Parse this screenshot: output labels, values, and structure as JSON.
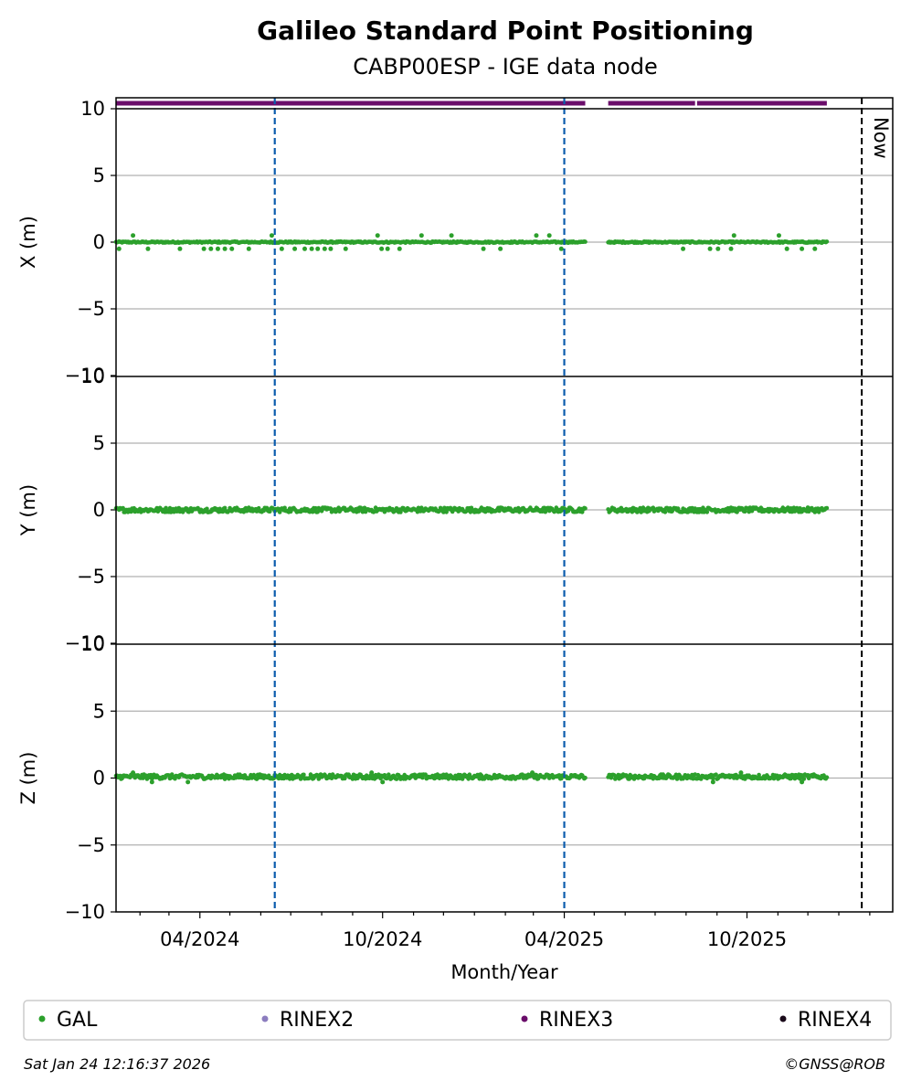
{
  "chart_data": {
    "type": "scatter",
    "title": "Galileo Standard Point Positioning",
    "subtitle": "CABP00ESP - IGE data node",
    "xlabel": "Month/Year",
    "x_tick_labels": [
      "04/2024",
      "10/2024",
      "04/2025",
      "10/2025"
    ],
    "x_ticks": [
      "2024-04-01",
      "2024-10-01",
      "2025-04-01",
      "2025-10-01"
    ],
    "xlim": [
      "2024-01-08",
      "2026-02-24"
    ],
    "now_label": "Now",
    "now_date": "2026-01-24",
    "reference_lines": [
      "2024-06-15",
      "2025-04-01"
    ],
    "grid": "horizontal",
    "subplots": [
      {
        "ylabel": "X (m)",
        "ylim": [
          -10,
          10
        ],
        "yticks": [
          -10,
          -5,
          0,
          5,
          10
        ],
        "series": "GAL",
        "baseline": 0.0,
        "outliers": [
          [
            "2024-01-11",
            -0.5
          ],
          [
            "2024-01-25",
            0.5
          ],
          [
            "2024-02-09",
            -0.5
          ],
          [
            "2024-03-12",
            -0.5
          ],
          [
            "2024-04-05",
            -0.5
          ],
          [
            "2024-04-12",
            -0.5
          ],
          [
            "2024-04-19",
            -0.5
          ],
          [
            "2024-04-26",
            -0.5
          ],
          [
            "2024-05-03",
            -0.5
          ],
          [
            "2024-05-20",
            -0.5
          ],
          [
            "2024-06-12",
            0.5
          ],
          [
            "2024-06-22",
            -0.5
          ],
          [
            "2024-07-05",
            -0.5
          ],
          [
            "2024-07-15",
            -0.5
          ],
          [
            "2024-07-22",
            -0.5
          ],
          [
            "2024-07-28",
            -0.5
          ],
          [
            "2024-08-04",
            -0.5
          ],
          [
            "2024-08-10",
            -0.5
          ],
          [
            "2024-08-25",
            -0.5
          ],
          [
            "2024-09-26",
            0.5
          ],
          [
            "2024-09-30",
            -0.5
          ],
          [
            "2024-10-06",
            -0.5
          ],
          [
            "2024-10-18",
            -0.5
          ],
          [
            "2024-11-09",
            0.5
          ],
          [
            "2024-12-09",
            0.5
          ],
          [
            "2025-01-10",
            -0.5
          ],
          [
            "2025-01-27",
            -0.5
          ],
          [
            "2025-03-04",
            0.5
          ],
          [
            "2025-03-17",
            0.5
          ],
          [
            "2025-03-29",
            -0.5
          ],
          [
            "2025-07-29",
            -0.5
          ],
          [
            "2025-08-25",
            -0.5
          ],
          [
            "2025-09-02",
            -0.5
          ],
          [
            "2025-09-15",
            -0.5
          ],
          [
            "2025-09-18",
            0.5
          ],
          [
            "2025-11-02",
            0.5
          ],
          [
            "2025-11-10",
            -0.5
          ],
          [
            "2025-11-25",
            -0.5
          ],
          [
            "2025-12-08",
            -0.5
          ]
        ]
      },
      {
        "ylabel": "Y (m)",
        "ylim": [
          -10,
          10
        ],
        "yticks": [
          -10,
          -5,
          0,
          5,
          10
        ],
        "series": "GAL",
        "baseline": 0.0,
        "outliers": []
      },
      {
        "ylabel": "Z (m)",
        "ylim": [
          -10,
          10
        ],
        "yticks": [
          -10,
          -5,
          0,
          5,
          10
        ],
        "series": "GAL",
        "baseline": 0.1,
        "outliers": [
          [
            "2024-01-25",
            0.4
          ],
          [
            "2024-02-13",
            -0.3
          ],
          [
            "2024-03-20",
            -0.3
          ],
          [
            "2024-10-01",
            -0.3
          ],
          [
            "2024-09-20",
            0.4
          ],
          [
            "2025-02-28",
            0.4
          ],
          [
            "2025-08-28",
            -0.3
          ],
          [
            "2025-09-25",
            0.4
          ],
          [
            "2025-11-25",
            -0.3
          ]
        ]
      }
    ],
    "data_spans": [
      [
        "2024-01-08",
        "2025-04-22"
      ],
      [
        "2025-05-15",
        "2025-12-20"
      ]
    ],
    "availability": {
      "label": "RINEX3",
      "spans": [
        [
          "2024-01-08",
          "2025-04-22"
        ],
        [
          "2025-05-15",
          "2025-08-10"
        ],
        [
          "2025-08-12",
          "2025-12-20"
        ]
      ]
    },
    "legend": [
      {
        "name": "GAL",
        "color": "#2ca02c"
      },
      {
        "name": "RINEX2",
        "color": "#8c7dbf"
      },
      {
        "name": "RINEX3",
        "color": "#6a0d6a"
      },
      {
        "name": "RINEX4",
        "color": "#1a0a1a"
      }
    ],
    "legend_placement": "bottom"
  },
  "colors": {
    "gal": "#2ca02c",
    "rinex3": "#6a0d6a",
    "reference_line": "#0b5cad",
    "now_line": "#000000",
    "grid": "#b0b0b0"
  },
  "footer": {
    "timestamp": "Sat Jan 24 12:16:37 2026",
    "copyright": "©GNSS@ROB"
  }
}
